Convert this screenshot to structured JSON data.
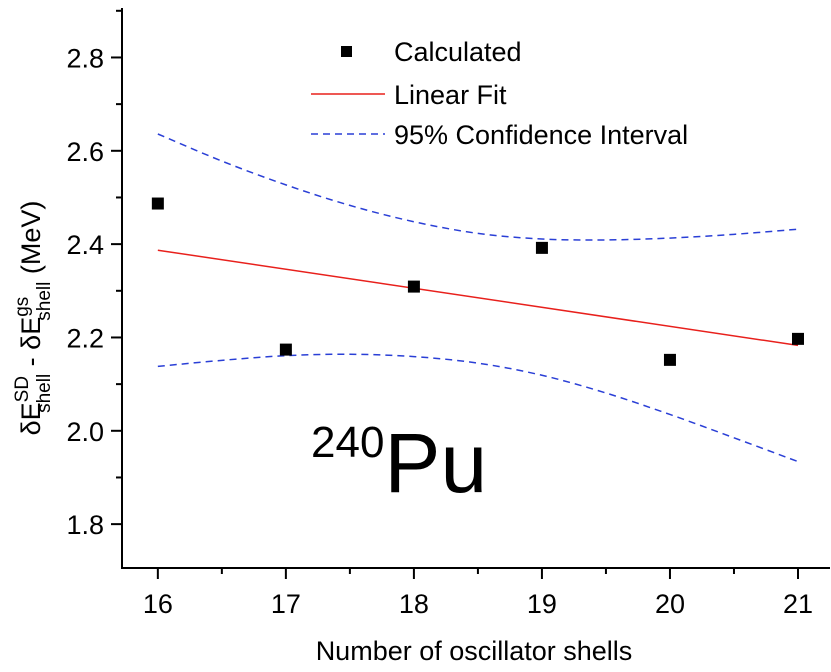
{
  "chart_data": {
    "type": "scatter",
    "title": "",
    "xlabel": "Number of oscillator shells",
    "ylabel": {
      "base": "δE",
      "sup1": "SD",
      "sub1": "shell",
      "minus": " - δE",
      "sup2": "gs",
      "sub2": "shell",
      "unit": " (MeV)"
    },
    "xlim": [
      15.72,
      21.25
    ],
    "ylim": [
      1.706,
      2.906
    ],
    "xticks": [
      16,
      17,
      18,
      19,
      20,
      21
    ],
    "yticks": [
      1.8,
      2.0,
      2.2,
      2.4,
      2.6,
      2.8
    ],
    "ytick_labels": [
      "1.8",
      "2.0",
      "2.2",
      "2.4",
      "2.6",
      "2.8"
    ],
    "series": [
      {
        "name": "Calculated",
        "kind": "points",
        "color": "#000000",
        "x": [
          16,
          17,
          18,
          19,
          20,
          21
        ],
        "y": [
          2.487,
          2.174,
          2.309,
          2.392,
          2.152,
          2.197
        ]
      },
      {
        "name": "Linear Fit",
        "kind": "line",
        "color": "#e8201c",
        "x": [
          16,
          21
        ],
        "y": [
          2.387,
          2.183
        ]
      },
      {
        "name": "95% Confidence Interval",
        "kind": "dashed",
        "color": "#2a3fd6",
        "upper": {
          "x": [
            16,
            16.5,
            17,
            17.5,
            18,
            18.5,
            19,
            19.5,
            20,
            20.5,
            21
          ],
          "y": [
            2.636,
            2.578,
            2.527,
            2.483,
            2.448,
            2.423,
            2.411,
            2.409,
            2.413,
            2.421,
            2.432
          ]
        },
        "lower": {
          "x": [
            16,
            16.5,
            17,
            17.5,
            18,
            18.5,
            19,
            19.5,
            20,
            20.5,
            21
          ],
          "y": [
            2.138,
            2.151,
            2.161,
            2.164,
            2.159,
            2.145,
            2.119,
            2.081,
            2.035,
            1.985,
            1.934
          ]
        }
      }
    ],
    "legend": {
      "placement": "top-center",
      "entries": [
        "Calculated",
        "Linear Fit",
        "95% Confidence Interval"
      ]
    },
    "annotation": {
      "mass_number": "240",
      "element": "Pu"
    }
  }
}
